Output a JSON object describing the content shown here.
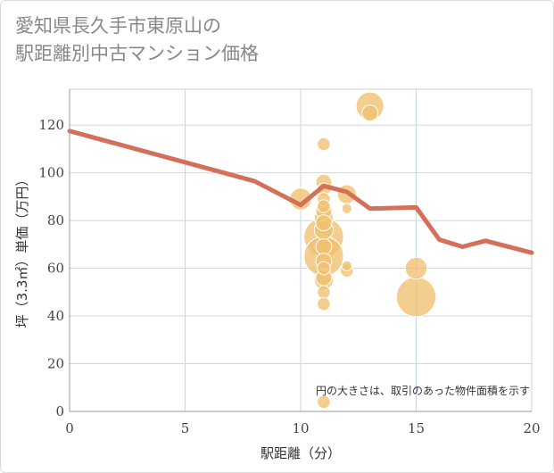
{
  "title": {
    "line1": "愛知県長久手市東原山の",
    "line2": "駅距離別中古マンション価格"
  },
  "chart_data": {
    "type": "scatter",
    "xlabel": "駅距離（分）",
    "ylabel": "坪（3.3㎡）単価（万円）",
    "annotation": "円の大きさは、取引のあった物件面積を示す",
    "xlim": [
      0,
      20
    ],
    "ylim": [
      0,
      135
    ],
    "xticks": [
      0,
      5,
      10,
      15,
      20
    ],
    "yticks": [
      0,
      20,
      40,
      60,
      80,
      100,
      120
    ],
    "grid": true,
    "colors": {
      "bubble": "#f0c070",
      "line": "#d4705a"
    },
    "bubbles": [
      {
        "x": 10,
        "y": 89,
        "size": 5
      },
      {
        "x": 11,
        "y": 112,
        "size": 2
      },
      {
        "x": 11,
        "y": 96,
        "size": 3
      },
      {
        "x": 11,
        "y": 93,
        "size": 2
      },
      {
        "x": 11,
        "y": 89,
        "size": 2
      },
      {
        "x": 11,
        "y": 86,
        "size": 2
      },
      {
        "x": 11,
        "y": 84,
        "size": 3
      },
      {
        "x": 11,
        "y": 81,
        "size": 4
      },
      {
        "x": 11,
        "y": 79,
        "size": 3
      },
      {
        "x": 11,
        "y": 76,
        "size": 4
      },
      {
        "x": 11,
        "y": 73,
        "size": 11
      },
      {
        "x": 11,
        "y": 69,
        "size": 3
      },
      {
        "x": 11,
        "y": 65,
        "size": 11
      },
      {
        "x": 11,
        "y": 63,
        "size": 3
      },
      {
        "x": 11,
        "y": 60,
        "size": 2
      },
      {
        "x": 11,
        "y": 56,
        "size": 3
      },
      {
        "x": 11,
        "y": 55,
        "size": 4
      },
      {
        "x": 11,
        "y": 50,
        "size": 2
      },
      {
        "x": 11,
        "y": 45,
        "size": 2
      },
      {
        "x": 11,
        "y": 4,
        "size": 2
      },
      {
        "x": 12,
        "y": 91,
        "size": 4
      },
      {
        "x": 12,
        "y": 85,
        "size": 1
      },
      {
        "x": 12,
        "y": 61,
        "size": 1
      },
      {
        "x": 12,
        "y": 59,
        "size": 2
      },
      {
        "x": 13,
        "y": 128,
        "size": 7
      },
      {
        "x": 13,
        "y": 125,
        "size": 3
      },
      {
        "x": 15,
        "y": 60,
        "size": 5
      },
      {
        "x": 15,
        "y": 48,
        "size": 11
      }
    ],
    "line": {
      "x": [
        0,
        8,
        10,
        11,
        12,
        13,
        15,
        16,
        17,
        18,
        20
      ],
      "y": [
        117.5,
        96.5,
        86.5,
        94.5,
        92,
        85,
        85.5,
        72,
        69,
        71.5,
        66.5
      ]
    }
  }
}
